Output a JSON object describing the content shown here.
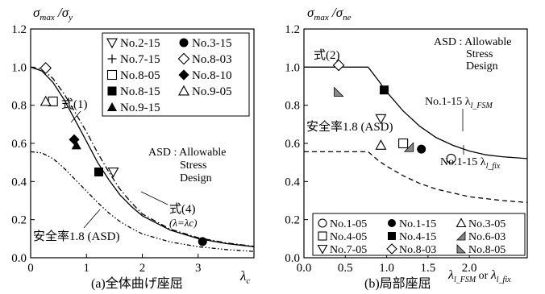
{
  "chart_data": [
    {
      "type": "line",
      "panel": "a",
      "caption": "(a)全体曲げ座屈",
      "ylabel": "σmax /σy",
      "xlabel": "λc",
      "xlim": [
        0,
        4
      ],
      "ylim": [
        0,
        1.2
      ],
      "xticks": [
        "0",
        "1",
        "2",
        "3"
      ],
      "yticks": [
        "0.0",
        "0.2",
        "0.4",
        "0.6",
        "0.8",
        "1.0",
        "1.2"
      ],
      "series": [
        {
          "name": "No.2-15",
          "marker": "triangle-down-open",
          "x": [
            1.48
          ],
          "y": [
            0.45
          ]
        },
        {
          "name": "No.3-15",
          "marker": "circle-filled",
          "x": [
            3.08
          ],
          "y": [
            0.085
          ]
        },
        {
          "name": "No.7-15",
          "marker": "plus",
          "x": [],
          "y": []
        },
        {
          "name": "No.8-03",
          "marker": "diamond-open",
          "x": [
            0.27
          ],
          "y": [
            0.995
          ]
        },
        {
          "name": "No.8-05",
          "marker": "square-open",
          "x": [
            0.4
          ],
          "y": [
            0.82
          ]
        },
        {
          "name": "No.8-10",
          "marker": "diamond-filled",
          "x": [
            0.78
          ],
          "y": [
            0.62
          ]
        },
        {
          "name": "No.8-15",
          "marker": "square-filled",
          "x": [
            1.22
          ],
          "y": [
            0.45
          ]
        },
        {
          "name": "No.9-05",
          "marker": "triangle-up-open",
          "x": [
            0.27
          ],
          "y": [
            0.82
          ]
        },
        {
          "name": "No.9-15",
          "marker": "triangle-up-filled",
          "x": [
            0.82
          ],
          "y": [
            0.59
          ]
        }
      ],
      "curves": [
        {
          "label": "式(1)",
          "style": "dashdot",
          "x": [
            0,
            0.2,
            0.4,
            0.6,
            0.8,
            1.0,
            1.2,
            1.4,
            1.6,
            1.8,
            2.0,
            2.5,
            3.0,
            3.5,
            4.0
          ],
          "y": [
            1.0,
            0.99,
            0.94,
            0.86,
            0.76,
            0.66,
            0.55,
            0.45,
            0.36,
            0.29,
            0.23,
            0.15,
            0.105,
            0.078,
            0.06
          ]
        },
        {
          "label": "式(4)",
          "sublabel": "(λ=λc)",
          "style": "solid",
          "x": [
            0,
            0.2,
            0.4,
            0.6,
            0.8,
            1.0,
            1.2,
            1.4,
            1.6,
            1.8,
            2.0,
            2.5,
            3.0,
            3.5,
            4.0
          ],
          "y": [
            1.0,
            0.98,
            0.92,
            0.83,
            0.72,
            0.61,
            0.5,
            0.41,
            0.33,
            0.27,
            0.22,
            0.145,
            0.1,
            0.075,
            0.058
          ]
        },
        {
          "label": "安全率1.8 (ASD)",
          "style": "dashdotdot",
          "x": [
            0,
            0.2,
            0.4,
            0.6,
            0.8,
            1.0,
            1.2,
            1.4,
            1.6,
            1.8,
            2.0,
            2.5,
            3.0,
            3.5,
            4.0
          ],
          "y": [
            0.556,
            0.55,
            0.52,
            0.47,
            0.41,
            0.35,
            0.29,
            0.235,
            0.19,
            0.155,
            0.125,
            0.083,
            0.058,
            0.043,
            0.033
          ]
        }
      ],
      "asd_note": [
        "ASD : Allowable",
        "Stress",
        "Design"
      ]
    },
    {
      "type": "line",
      "panel": "b",
      "caption": "(b)局部座屈",
      "ylabel": "σmax /σne",
      "xlabel": "λl_FSM or λl_fix",
      "xlim": [
        0,
        2.7
      ],
      "ylim": [
        0,
        1.2
      ],
      "xticks": [
        "0.0",
        "0.5",
        "1.0",
        "1.5",
        "2.0"
      ],
      "yticks": [
        "0.0",
        "0.2",
        "0.4",
        "0.6",
        "0.8",
        "1.0",
        "1.2"
      ],
      "series": [
        {
          "name": "No.1-05",
          "marker": "circle-open",
          "x": [
            1.78
          ],
          "y": [
            0.52
          ]
        },
        {
          "name": "No.1-15",
          "marker": "circle-filled",
          "x": [
            1.42
          ],
          "y": [
            0.57
          ]
        },
        {
          "name": "No.3-05",
          "marker": "triangle-up-open",
          "x": [
            0.93
          ],
          "y": [
            0.59
          ]
        },
        {
          "name": "No.4-05",
          "marker": "square-open",
          "x": [
            1.2
          ],
          "y": [
            0.6
          ]
        },
        {
          "name": "No.4-15",
          "marker": "square-filled",
          "x": [
            0.97
          ],
          "y": [
            0.88
          ]
        },
        {
          "name": "No.6-03",
          "marker": "triangle-ur-filled",
          "x": [
            1.27
          ],
          "y": [
            0.58
          ]
        },
        {
          "name": "No.7-05",
          "marker": "triangle-down-open",
          "x": [
            0.93
          ],
          "y": [
            0.73
          ]
        },
        {
          "name": "No.8-03",
          "marker": "diamond-open",
          "x": [
            0.42
          ],
          "y": [
            1.01
          ]
        },
        {
          "name": "No.8-05",
          "marker": "triangle-lr-filled",
          "x": [
            0.42
          ],
          "y": [
            0.87
          ]
        }
      ],
      "curves": [
        {
          "label": "式(2)",
          "style": "solid",
          "x": [
            0,
            0.2,
            0.4,
            0.6,
            0.776,
            0.9,
            1.0,
            1.2,
            1.4,
            1.6,
            1.8,
            2.0,
            2.2,
            2.4,
            2.7
          ],
          "y": [
            1.0,
            1.0,
            1.0,
            1.0,
            1.0,
            0.93,
            0.87,
            0.77,
            0.69,
            0.63,
            0.59,
            0.56,
            0.54,
            0.53,
            0.52
          ]
        },
        {
          "label": "安全率1.8 (ASD)",
          "style": "dashed",
          "x": [
            0,
            0.2,
            0.4,
            0.6,
            0.776,
            0.9,
            1.0,
            1.2,
            1.4,
            1.6,
            1.8,
            2.0,
            2.2,
            2.4,
            2.7
          ],
          "y": [
            0.556,
            0.556,
            0.556,
            0.556,
            0.556,
            0.51,
            0.48,
            0.43,
            0.39,
            0.36,
            0.34,
            0.32,
            0.31,
            0.3,
            0.29
          ]
        }
      ],
      "annotations": [
        "No.1-15 λl_FSM",
        "No.1-15 λl_fix"
      ],
      "asd_note": [
        "ASD : Allowable",
        "Stress",
        "Design"
      ]
    }
  ],
  "text": {
    "a_ylabel_main": "σ",
    "a_ylabel_sub1": "max",
    "a_ylabel_mid": " /σ",
    "a_ylabel_sub2": "y",
    "b_ylabel_main": "σ",
    "b_ylabel_sub1": "max",
    "b_ylabel_mid": " /σ",
    "b_ylabel_sub2": "ne",
    "a_xlabel_main": "λ",
    "a_xlabel_sub": "c",
    "b_xlabel_l1": "λ",
    "b_xlabel_s1": "l_FSM",
    "b_xlabel_or": " or ",
    "b_xlabel_l2": "λ",
    "b_xlabel_s2": "l_fix",
    "a_curve1": "式(1)",
    "a_curve2": "式(4)",
    "a_curve2_sub": "(λ=λc)",
    "a_asd": "安全率1.8 (ASD)",
    "b_curve1": "式(2)",
    "b_asd": "安全率1.8 (ASD)",
    "b_ann1": "No.1-15 λ",
    "b_ann1_sub": "l_FSM",
    "b_ann2": "No.1-15 λ",
    "b_ann2_sub": "l_fix",
    "note1": "ASD : Allowable",
    "note2": "Stress",
    "note3": "Design",
    "cap_a": "(a)全体曲げ座屈",
    "cap_b": "(b)局部座屈"
  }
}
